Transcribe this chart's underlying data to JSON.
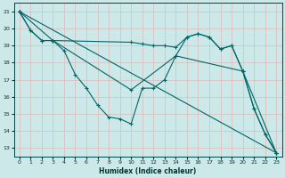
{
  "xlabel": "Humidex (Indice chaleur)",
  "bg_color": "#cce8e8",
  "grid_color": "#aacccc",
  "line_color": "#006666",
  "xlim": [
    -0.5,
    23.5
  ],
  "ylim": [
    12.5,
    21.5
  ],
  "yticks": [
    13,
    14,
    15,
    16,
    17,
    18,
    19,
    20,
    21
  ],
  "xticks": [
    0,
    1,
    2,
    3,
    4,
    5,
    6,
    7,
    8,
    9,
    10,
    11,
    12,
    13,
    14,
    15,
    16,
    17,
    18,
    19,
    20,
    21,
    22,
    23
  ],
  "series": [
    {
      "x": [
        0,
        1,
        2,
        3,
        4,
        5,
        6,
        7,
        8,
        9,
        10,
        11,
        12,
        13,
        14,
        15,
        16,
        17,
        18,
        19,
        20,
        21,
        22,
        23
      ],
      "y": [
        21.0,
        19.9,
        19.3,
        19.3,
        18.7,
        17.3,
        16.5,
        15.5,
        14.8,
        14.7,
        14.4,
        16.5,
        16.5,
        17.0,
        18.4,
        19.5,
        19.7,
        19.5,
        18.8,
        19.0,
        17.5,
        15.3,
        13.8,
        12.7
      ]
    },
    {
      "x": [
        0,
        1,
        2,
        3,
        10,
        11,
        12,
        13,
        14,
        15,
        16,
        17,
        18,
        19,
        20,
        21,
        22,
        23
      ],
      "y": [
        21.0,
        19.9,
        19.3,
        19.3,
        19.2,
        19.1,
        19.0,
        19.0,
        18.9,
        19.5,
        19.7,
        19.5,
        18.8,
        19.0,
        17.5,
        15.3,
        13.8,
        12.7
      ]
    },
    {
      "x": [
        0,
        23
      ],
      "y": [
        21.0,
        12.7
      ]
    },
    {
      "comment": "Line 4: piecewise from 0,21 to 3,19.3 to 10,16.4 to 14,18.4 to 20,17.5 to 23,12.7",
      "x": [
        0,
        3,
        10,
        14,
        20,
        23
      ],
      "y": [
        21.0,
        19.3,
        16.4,
        18.4,
        17.5,
        12.7
      ]
    }
  ]
}
